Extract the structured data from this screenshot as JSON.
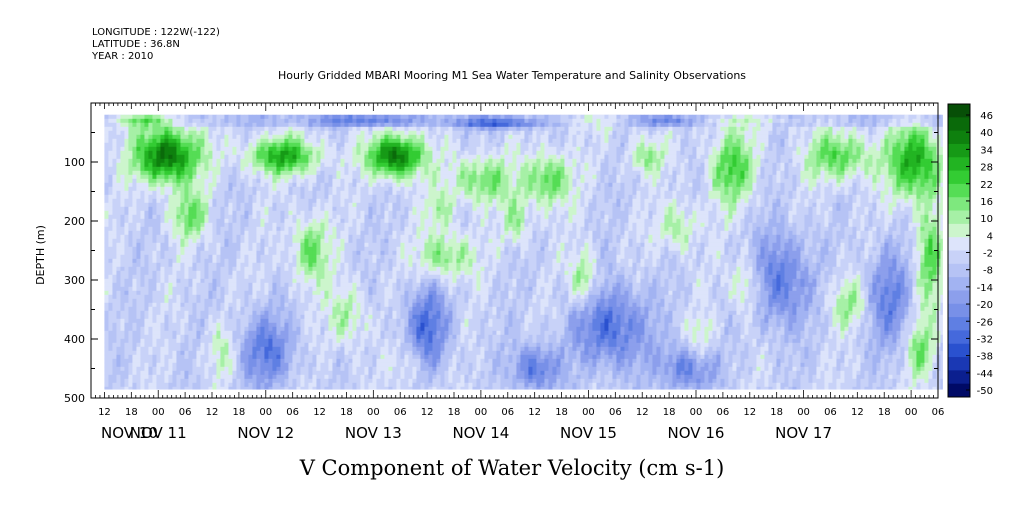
{
  "header": {
    "line1": "LONGITUDE : 122W(-122)",
    "line2": "LATITUDE : 36.8N",
    "line3": "YEAR : 2010"
  },
  "chart_data": {
    "type": "heatmap",
    "title": "Hourly Gridded MBARI Mooring M1 Sea Water Temperature and Salinity Observations",
    "xlabel": "V Component of Water Velocity (cm s-1)",
    "ylabel": "DEPTH (m)",
    "ylim": [
      0,
      500
    ],
    "y_ticks": [
      100,
      200,
      300,
      400,
      500
    ],
    "y_tick_labels": [
      "100",
      "200",
      "300",
      "400",
      "500"
    ],
    "x_hour_labels": [
      "12",
      "18",
      "00",
      "06",
      "12",
      "18",
      "00",
      "06",
      "12",
      "18",
      "00",
      "06",
      "12",
      "18",
      "00",
      "06",
      "12",
      "18",
      "00",
      "06",
      "12",
      "18",
      "00",
      "06",
      "12",
      "18",
      "00",
      "06",
      "12",
      "18",
      "00",
      "06"
    ],
    "x_day_labels": [
      "NOV 10",
      "NOV 11",
      "NOV 12",
      "NOV 13",
      "NOV 14",
      "NOV 15",
      "NOV 16",
      "NOV 17"
    ],
    "data_range": {
      "hours_start": 12,
      "hours_end": 199,
      "depth_top": 20,
      "depth_bottom": 485
    },
    "colorbar": {
      "labels": [
        "46",
        "40",
        "34",
        "28",
        "22",
        "16",
        "10",
        "4",
        "-2",
        "-8",
        "-14",
        "-20",
        "-26",
        "-32",
        "-38",
        "-44",
        "-50"
      ],
      "min": -50,
      "max": 49,
      "colors": [
        "#000a66",
        "#0b1f8f",
        "#1a38b4",
        "#2a51cf",
        "#4569dc",
        "#5f7fe3",
        "#7890e8",
        "#8c9fec",
        "#a2b3f2",
        "#b6c3f5",
        "#c8d2f8",
        "#dde4fb",
        "#ccf5cc",
        "#a6f0a6",
        "#7ee87e",
        "#55dd55",
        "#33cc33",
        "#22b422",
        "#169a16",
        "#0e800e",
        "#0a6a0a",
        "#074f07"
      ]
    },
    "blobs": [
      {
        "t": 26,
        "d": 90,
        "rt": 7,
        "rd": 45,
        "v": 45
      },
      {
        "t": 31,
        "d": 190,
        "rt": 4,
        "rd": 40,
        "v": 20
      },
      {
        "t": 20,
        "d": 30,
        "rt": 8,
        "rd": 12,
        "v": 22
      },
      {
        "t": 52,
        "d": 90,
        "rt": 8,
        "rd": 30,
        "v": 32
      },
      {
        "t": 58,
        "d": 250,
        "rt": 4,
        "rd": 55,
        "v": 22
      },
      {
        "t": 66,
        "d": 360,
        "rt": 4,
        "rd": 50,
        "v": 15
      },
      {
        "t": 77,
        "d": 90,
        "rt": 6,
        "rd": 35,
        "v": 45
      },
      {
        "t": 88,
        "d": 260,
        "rt": 6,
        "rd": 40,
        "v": 20
      },
      {
        "t": 87,
        "d": 180,
        "rt": 3,
        "rd": 30,
        "v": 14
      },
      {
        "t": 96,
        "d": 130,
        "rt": 7,
        "rd": 40,
        "v": 20
      },
      {
        "t": 104,
        "d": 200,
        "rt": 3,
        "rd": 40,
        "v": 15
      },
      {
        "t": 111,
        "d": 130,
        "rt": 5,
        "rd": 45,
        "v": 24
      },
      {
        "t": 119,
        "d": 300,
        "rt": 3,
        "rd": 45,
        "v": 20
      },
      {
        "t": 133,
        "d": 90,
        "rt": 4,
        "rd": 30,
        "v": 16
      },
      {
        "t": 140,
        "d": 210,
        "rt": 4,
        "rd": 40,
        "v": 16
      },
      {
        "t": 152,
        "d": 110,
        "rt": 5,
        "rd": 60,
        "v": 24
      },
      {
        "t": 155,
        "d": 310,
        "rt": 3,
        "rd": 50,
        "v": 15
      },
      {
        "t": 176,
        "d": 90,
        "rt": 7,
        "rd": 40,
        "v": 24
      },
      {
        "t": 178,
        "d": 340,
        "rt": 4,
        "rd": 40,
        "v": 15
      },
      {
        "t": 193,
        "d": 100,
        "rt": 6,
        "rd": 60,
        "v": 34
      },
      {
        "t": 196,
        "d": 260,
        "rt": 3,
        "rd": 90,
        "v": 22
      },
      {
        "t": 194,
        "d": 420,
        "rt": 3,
        "rd": 50,
        "v": 18
      },
      {
        "t": 120,
        "d": 30,
        "rt": 10,
        "rd": 14,
        "v": 12
      },
      {
        "t": 155,
        "d": 30,
        "rt": 14,
        "rd": 12,
        "v": 12
      },
      {
        "t": 38,
        "d": 420,
        "rt": 3,
        "rd": 45,
        "v": 12
      },
      {
        "t": 80,
        "d": 440,
        "rt": 3,
        "rd": 40,
        "v": 10
      },
      {
        "t": 145,
        "d": 400,
        "rt": 3,
        "rd": 40,
        "v": 10
      },
      {
        "t": 70,
        "d": 30,
        "rt": 10,
        "rd": 10,
        "v": -18
      },
      {
        "t": 100,
        "d": 35,
        "rt": 10,
        "rd": 10,
        "v": -22
      },
      {
        "t": 138,
        "d": 30,
        "rt": 6,
        "rd": 10,
        "v": -20
      },
      {
        "t": 48,
        "d": 420,
        "rt": 6,
        "rd": 60,
        "v": -22
      },
      {
        "t": 84,
        "d": 380,
        "rt": 5,
        "rd": 70,
        "v": -24
      },
      {
        "t": 125,
        "d": 380,
        "rt": 8,
        "rd": 70,
        "v": -26
      },
      {
        "t": 163,
        "d": 300,
        "rt": 6,
        "rd": 80,
        "v": -24
      },
      {
        "t": 187,
        "d": 330,
        "rt": 5,
        "rd": 80,
        "v": -20
      },
      {
        "t": 108,
        "d": 450,
        "rt": 5,
        "rd": 40,
        "v": -24
      },
      {
        "t": 142,
        "d": 450,
        "rt": 6,
        "rd": 40,
        "v": -22
      }
    ]
  }
}
